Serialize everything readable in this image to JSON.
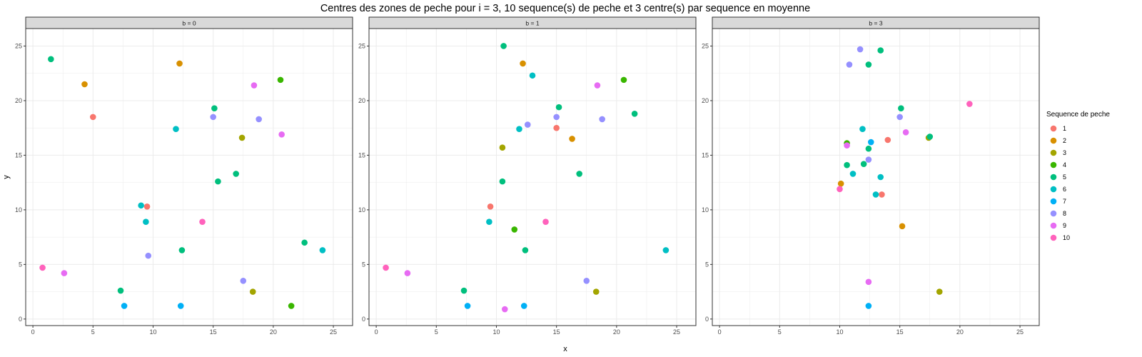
{
  "chart_data": {
    "type": "scatter",
    "title": "Centres des zones de peche pour i = 3, 10 sequence(s) de peche et 3 centre(s) par sequence en moyenne",
    "xlabel": "x",
    "ylabel": "y",
    "xlim": [
      -0.6,
      26.6
    ],
    "ylim": [
      -0.6,
      26.6
    ],
    "xticks": [
      0,
      5,
      10,
      15,
      20,
      25
    ],
    "yticks": [
      0,
      5,
      10,
      15,
      20,
      25
    ],
    "grid": true,
    "legend": {
      "title": "Sequence de peche",
      "position": "right",
      "entries": [
        {
          "label": "1",
          "color": "#F8766D"
        },
        {
          "label": "2",
          "color": "#D89000"
        },
        {
          "label": "3",
          "color": "#A3A500"
        },
        {
          "label": "4",
          "color": "#39B600"
        },
        {
          "label": "5",
          "color": "#00BF7D"
        },
        {
          "label": "6",
          "color": "#00BFC4"
        },
        {
          "label": "7",
          "color": "#00B0F6"
        },
        {
          "label": "8",
          "color": "#9590FF"
        },
        {
          "label": "9",
          "color": "#E76BF3"
        },
        {
          "label": "10",
          "color": "#FF62BC"
        }
      ]
    },
    "panels": [
      {
        "label": "b = 0",
        "points": [
          {
            "x": 5.0,
            "y": 18.5,
            "seq": "1"
          },
          {
            "x": 9.5,
            "y": 10.3,
            "seq": "1"
          },
          {
            "x": 4.3,
            "y": 21.5,
            "seq": "2"
          },
          {
            "x": 12.2,
            "y": 23.4,
            "seq": "2"
          },
          {
            "x": 17.4,
            "y": 16.6,
            "seq": "3"
          },
          {
            "x": 18.3,
            "y": 2.5,
            "seq": "3"
          },
          {
            "x": 20.6,
            "y": 21.9,
            "seq": "4"
          },
          {
            "x": 21.5,
            "y": 1.2,
            "seq": "4"
          },
          {
            "x": 1.5,
            "y": 23.8,
            "seq": "5"
          },
          {
            "x": 15.1,
            "y": 19.3,
            "seq": "5"
          },
          {
            "x": 16.9,
            "y": 13.3,
            "seq": "5"
          },
          {
            "x": 15.4,
            "y": 12.6,
            "seq": "5"
          },
          {
            "x": 12.4,
            "y": 6.3,
            "seq": "5"
          },
          {
            "x": 7.3,
            "y": 2.6,
            "seq": "5"
          },
          {
            "x": 22.6,
            "y": 7.0,
            "seq": "5"
          },
          {
            "x": 11.9,
            "y": 17.4,
            "seq": "6"
          },
          {
            "x": 9.0,
            "y": 10.4,
            "seq": "6"
          },
          {
            "x": 9.4,
            "y": 8.9,
            "seq": "6"
          },
          {
            "x": 24.1,
            "y": 6.3,
            "seq": "6"
          },
          {
            "x": 7.6,
            "y": 1.2,
            "seq": "7"
          },
          {
            "x": 12.3,
            "y": 1.2,
            "seq": "7"
          },
          {
            "x": 15.0,
            "y": 18.5,
            "seq": "8"
          },
          {
            "x": 18.8,
            "y": 18.3,
            "seq": "8"
          },
          {
            "x": 9.6,
            "y": 5.8,
            "seq": "8"
          },
          {
            "x": 17.5,
            "y": 3.5,
            "seq": "8"
          },
          {
            "x": 18.4,
            "y": 21.4,
            "seq": "9"
          },
          {
            "x": 20.7,
            "y": 16.9,
            "seq": "9"
          },
          {
            "x": 2.6,
            "y": 4.2,
            "seq": "9"
          },
          {
            "x": 14.1,
            "y": 8.9,
            "seq": "10"
          },
          {
            "x": 0.8,
            "y": 4.7,
            "seq": "10"
          }
        ]
      },
      {
        "label": "b = 1",
        "points": [
          {
            "x": 9.5,
            "y": 10.3,
            "seq": "1"
          },
          {
            "x": 15.0,
            "y": 17.5,
            "seq": "1"
          },
          {
            "x": 12.2,
            "y": 23.4,
            "seq": "2"
          },
          {
            "x": 16.3,
            "y": 16.5,
            "seq": "2"
          },
          {
            "x": 10.5,
            "y": 15.7,
            "seq": "3"
          },
          {
            "x": 18.3,
            "y": 2.5,
            "seq": "3"
          },
          {
            "x": 20.6,
            "y": 21.9,
            "seq": "4"
          },
          {
            "x": 11.5,
            "y": 8.2,
            "seq": "4"
          },
          {
            "x": 10.6,
            "y": 25.0,
            "seq": "5"
          },
          {
            "x": 15.2,
            "y": 19.4,
            "seq": "5"
          },
          {
            "x": 21.5,
            "y": 18.8,
            "seq": "5"
          },
          {
            "x": 16.9,
            "y": 13.3,
            "seq": "5"
          },
          {
            "x": 10.5,
            "y": 12.6,
            "seq": "5"
          },
          {
            "x": 12.4,
            "y": 6.3,
            "seq": "5"
          },
          {
            "x": 7.3,
            "y": 2.6,
            "seq": "5"
          },
          {
            "x": 13.0,
            "y": 22.3,
            "seq": "6"
          },
          {
            "x": 11.9,
            "y": 17.4,
            "seq": "6"
          },
          {
            "x": 9.4,
            "y": 8.9,
            "seq": "6"
          },
          {
            "x": 24.1,
            "y": 6.3,
            "seq": "6"
          },
          {
            "x": 7.6,
            "y": 1.2,
            "seq": "7"
          },
          {
            "x": 12.3,
            "y": 1.2,
            "seq": "7"
          },
          {
            "x": 12.6,
            "y": 17.8,
            "seq": "8"
          },
          {
            "x": 15.0,
            "y": 18.5,
            "seq": "8"
          },
          {
            "x": 18.8,
            "y": 18.3,
            "seq": "8"
          },
          {
            "x": 17.5,
            "y": 3.5,
            "seq": "8"
          },
          {
            "x": 18.4,
            "y": 21.4,
            "seq": "9"
          },
          {
            "x": 2.6,
            "y": 4.2,
            "seq": "9"
          },
          {
            "x": 10.7,
            "y": 0.9,
            "seq": "9"
          },
          {
            "x": 14.1,
            "y": 8.9,
            "seq": "10"
          },
          {
            "x": 0.8,
            "y": 4.7,
            "seq": "10"
          }
        ]
      },
      {
        "label": "b = 3",
        "points": [
          {
            "x": 14.0,
            "y": 16.4,
            "seq": "1"
          },
          {
            "x": 13.5,
            "y": 11.4,
            "seq": "1"
          },
          {
            "x": 10.1,
            "y": 12.4,
            "seq": "2"
          },
          {
            "x": 15.2,
            "y": 8.5,
            "seq": "2"
          },
          {
            "x": 17.4,
            "y": 16.6,
            "seq": "3"
          },
          {
            "x": 18.3,
            "y": 2.5,
            "seq": "3"
          },
          {
            "x": 10.6,
            "y": 16.1,
            "seq": "4"
          },
          {
            "x": 13.4,
            "y": 24.6,
            "seq": "5"
          },
          {
            "x": 12.4,
            "y": 23.3,
            "seq": "5"
          },
          {
            "x": 15.1,
            "y": 19.3,
            "seq": "5"
          },
          {
            "x": 17.5,
            "y": 16.7,
            "seq": "5"
          },
          {
            "x": 12.4,
            "y": 15.6,
            "seq": "5"
          },
          {
            "x": 10.6,
            "y": 14.1,
            "seq": "5"
          },
          {
            "x": 12.0,
            "y": 14.2,
            "seq": "5"
          },
          {
            "x": 11.9,
            "y": 17.4,
            "seq": "6"
          },
          {
            "x": 11.1,
            "y": 13.3,
            "seq": "6"
          },
          {
            "x": 13.4,
            "y": 13.0,
            "seq": "6"
          },
          {
            "x": 13.0,
            "y": 11.4,
            "seq": "6"
          },
          {
            "x": 12.6,
            "y": 16.2,
            "seq": "7"
          },
          {
            "x": 12.4,
            "y": 1.2,
            "seq": "7"
          },
          {
            "x": 11.7,
            "y": 24.7,
            "seq": "8"
          },
          {
            "x": 10.8,
            "y": 23.3,
            "seq": "8"
          },
          {
            "x": 15.0,
            "y": 18.5,
            "seq": "8"
          },
          {
            "x": 12.4,
            "y": 14.6,
            "seq": "8"
          },
          {
            "x": 15.5,
            "y": 17.1,
            "seq": "9"
          },
          {
            "x": 10.6,
            "y": 15.9,
            "seq": "9"
          },
          {
            "x": 12.4,
            "y": 3.4,
            "seq": "9"
          },
          {
            "x": 20.8,
            "y": 19.7,
            "seq": "10"
          },
          {
            "x": 10.0,
            "y": 11.9,
            "seq": "10"
          }
        ]
      }
    ]
  }
}
